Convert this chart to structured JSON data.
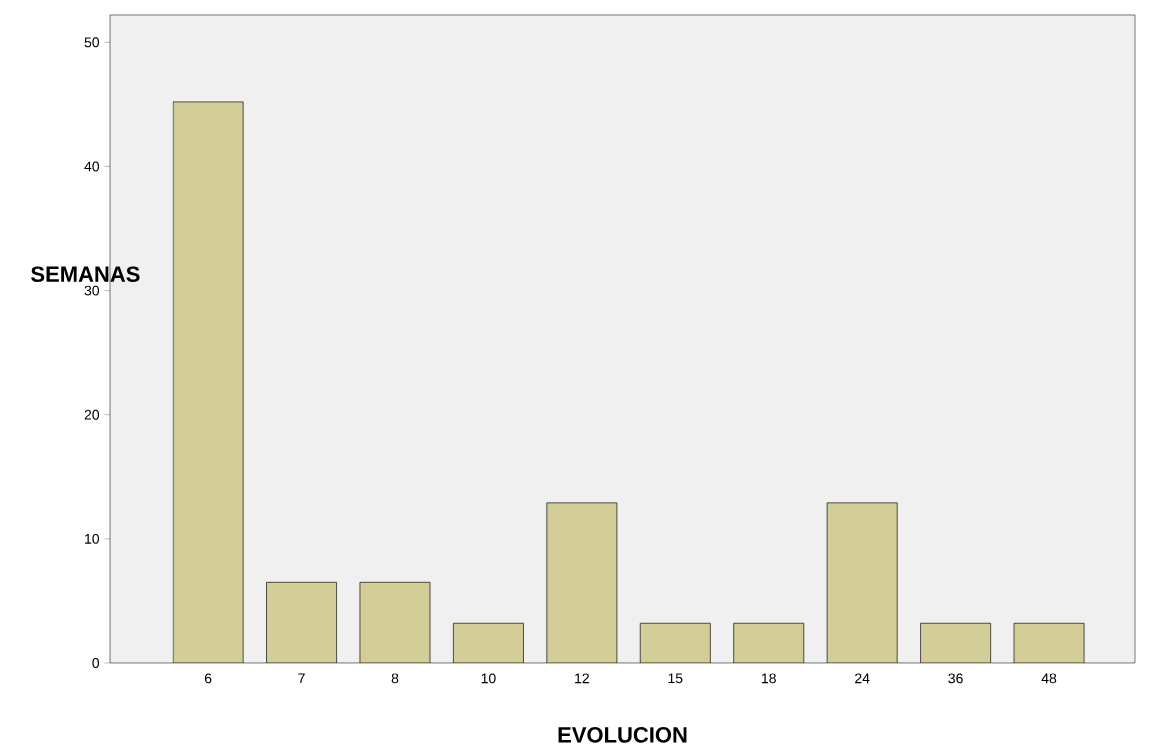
{
  "chart_data": {
    "type": "bar",
    "xlabel": "EVOLUCION",
    "ylabel": "SEMANAS",
    "categories": [
      "6",
      "7",
      "8",
      "10",
      "12",
      "15",
      "18",
      "24",
      "36",
      "48"
    ],
    "values": [
      45.2,
      6.5,
      6.5,
      3.2,
      12.9,
      3.2,
      3.2,
      12.9,
      3.2,
      3.2
    ],
    "color": "#d3ce97",
    "ylim": [
      0,
      52.2
    ],
    "yticks": [
      0,
      10,
      20,
      30,
      40,
      50
    ]
  }
}
